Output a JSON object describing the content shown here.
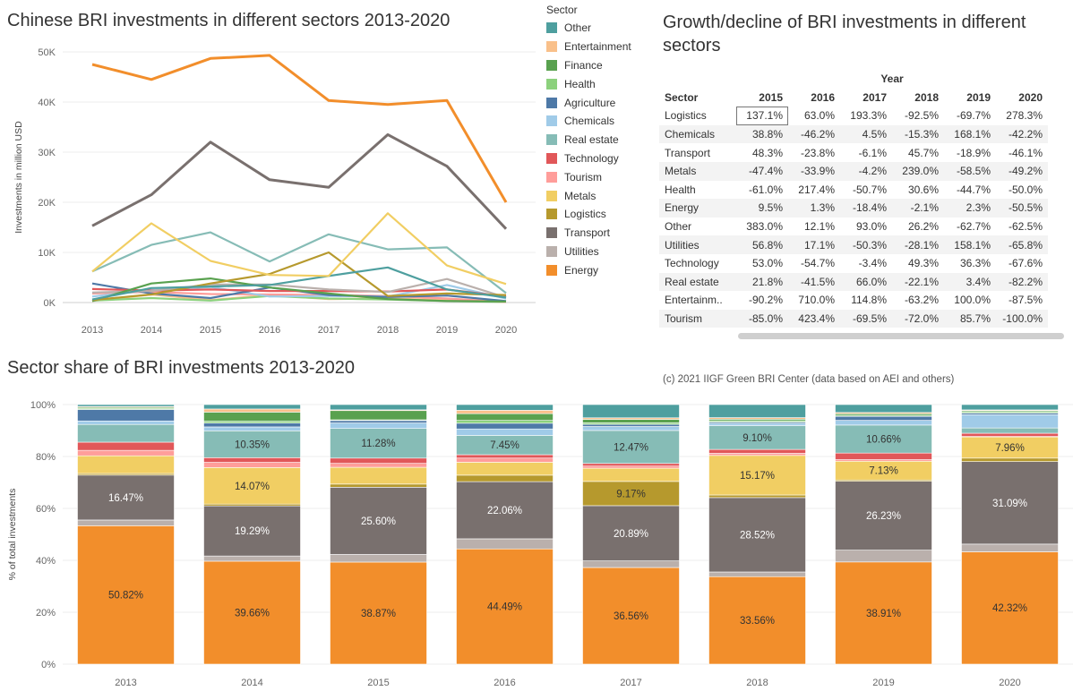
{
  "titles": {
    "line": "Chinese BRI investments in different sectors 2013-2020",
    "table": "Growth/decline of BRI investments in different sectors",
    "bars": "Sector share of BRI investments 2013-2020",
    "credit": "(c) 2021 IIGF Green BRI Center (data based on AEI and others)"
  },
  "legend": {
    "title": "Sector",
    "items": [
      {
        "label": "Other",
        "color": "#4e9f9f"
      },
      {
        "label": "Entertainment",
        "color": "#f9c08a"
      },
      {
        "label": "Finance",
        "color": "#59a14f"
      },
      {
        "label": "Health",
        "color": "#8cd17d"
      },
      {
        "label": "Agriculture",
        "color": "#4e79a7"
      },
      {
        "label": "Chemicals",
        "color": "#a0cbe8"
      },
      {
        "label": "Real estate",
        "color": "#86bcb6"
      },
      {
        "label": "Technology",
        "color": "#e15759"
      },
      {
        "label": "Tourism",
        "color": "#ff9d9a"
      },
      {
        "label": "Metals",
        "color": "#f1ce63"
      },
      {
        "label": "Logistics",
        "color": "#b6992d"
      },
      {
        "label": "Transport",
        "color": "#79706e"
      },
      {
        "label": "Utilities",
        "color": "#bab0ac"
      },
      {
        "label": "Energy",
        "color": "#f28e2b"
      }
    ]
  },
  "table": {
    "year_header": "Year",
    "sector_header": "Sector",
    "years": [
      "2015",
      "2016",
      "2017",
      "2018",
      "2019",
      "2020"
    ],
    "rows": [
      {
        "sector": "Logistics",
        "values": [
          "137.1%",
          "63.0%",
          "193.3%",
          "-92.5%",
          "-69.7%",
          "278.3%"
        ]
      },
      {
        "sector": "Chemicals",
        "values": [
          "38.8%",
          "-46.2%",
          "4.5%",
          "-15.3%",
          "168.1%",
          "-42.2%"
        ]
      },
      {
        "sector": "Transport",
        "values": [
          "48.3%",
          "-23.8%",
          "-6.1%",
          "45.7%",
          "-18.9%",
          "-46.1%"
        ]
      },
      {
        "sector": "Metals",
        "values": [
          "-47.4%",
          "-33.9%",
          "-4.2%",
          "239.0%",
          "-58.5%",
          "-49.2%"
        ]
      },
      {
        "sector": "Health",
        "values": [
          "-61.0%",
          "217.4%",
          "-50.7%",
          "30.6%",
          "-44.7%",
          "-50.0%"
        ]
      },
      {
        "sector": "Energy",
        "values": [
          "9.5%",
          "1.3%",
          "-18.4%",
          "-2.1%",
          "2.3%",
          "-50.5%"
        ]
      },
      {
        "sector": "Other",
        "values": [
          "383.0%",
          "12.1%",
          "93.0%",
          "26.2%",
          "-62.7%",
          "-62.5%"
        ]
      },
      {
        "sector": "Utilities",
        "values": [
          "56.8%",
          "17.1%",
          "-50.3%",
          "-28.1%",
          "158.1%",
          "-65.8%"
        ]
      },
      {
        "sector": "Technology",
        "values": [
          "53.0%",
          "-54.7%",
          "-3.4%",
          "49.3%",
          "36.3%",
          "-67.6%"
        ]
      },
      {
        "sector": "Real estate",
        "values": [
          "21.8%",
          "-41.5%",
          "66.0%",
          "-22.1%",
          "3.4%",
          "-82.2%"
        ]
      },
      {
        "sector": "Entertainm..",
        "values": [
          "-90.2%",
          "710.0%",
          "114.8%",
          "-63.2%",
          "100.0%",
          "-87.5%"
        ]
      },
      {
        "sector": "Tourism",
        "values": [
          "-85.0%",
          "423.4%",
          "-69.5%",
          "-72.0%",
          "85.7%",
          "-100.0%"
        ]
      }
    ]
  },
  "chart_data": [
    {
      "type": "line",
      "title": "Chinese BRI investments in different sectors 2013-2020",
      "xlabel": "",
      "ylabel": "Investments in million USD",
      "x": [
        "2013",
        "2014",
        "2015",
        "2016",
        "2017",
        "2018",
        "2019",
        "2020"
      ],
      "ylim": [
        0,
        50000
      ],
      "yticks": [
        "0K",
        "10K",
        "20K",
        "30K",
        "40K",
        "50K"
      ],
      "grid": true,
      "series": [
        {
          "name": "Energy",
          "color": "#f28e2b",
          "values": [
            47500,
            44500,
            48700,
            49300,
            40300,
            39500,
            40300,
            20000
          ]
        },
        {
          "name": "Transport",
          "color": "#79706e",
          "values": [
            15300,
            21500,
            32000,
            24500,
            23000,
            33500,
            27200,
            14700
          ]
        },
        {
          "name": "Metals",
          "color": "#f1ce63",
          "values": [
            6200,
            15800,
            8300,
            5500,
            5300,
            17800,
            7400,
            3700
          ]
        },
        {
          "name": "Real estate",
          "color": "#86bcb6",
          "values": [
            6200,
            11500,
            14000,
            8200,
            13600,
            10600,
            11000,
            1900
          ]
        },
        {
          "name": "Other",
          "color": "#4e9f9f",
          "values": [
            600,
            2900,
            3200,
            3500,
            5300,
            7000,
            2600,
            1000
          ]
        },
        {
          "name": "Logistics",
          "color": "#b6992d",
          "values": [
            500,
            1600,
            3800,
            5700,
            10000,
            1300,
            1800,
            1500
          ]
        },
        {
          "name": "Finance",
          "color": "#59a14f",
          "values": [
            300,
            3800,
            4800,
            3000,
            1800,
            700,
            300,
            200
          ]
        },
        {
          "name": "Utilities",
          "color": "#bab0ac",
          "values": [
            2000,
            2300,
            3600,
            3600,
            2600,
            2100,
            4700,
            1000
          ]
        },
        {
          "name": "Technology",
          "color": "#e15759",
          "values": [
            2700,
            2400,
            2600,
            2300,
            2300,
            2200,
            2600,
            1200
          ]
        },
        {
          "name": "Agriculture",
          "color": "#4e79a7",
          "values": [
            3800,
            1800,
            900,
            3000,
            1500,
            1100,
            1400,
            300
          ]
        },
        {
          "name": "Chemicals",
          "color": "#a0cbe8",
          "values": [
            1200,
            2500,
            3100,
            1200,
            1300,
            1200,
            3500,
            800
          ]
        },
        {
          "name": "Tourism",
          "color": "#ff9d9a",
          "values": [
            1800,
            2100,
            1700,
            1600,
            1500,
            1300,
            800,
            100
          ]
        },
        {
          "name": "Health",
          "color": "#8cd17d",
          "values": [
            400,
            900,
            400,
            1300,
            800,
            600,
            300,
            100
          ]
        },
        {
          "name": "Entertainment",
          "color": "#f9c08a",
          "values": [
            300,
            1600,
            500,
            1500,
            700,
            800,
            500,
            100
          ]
        }
      ]
    },
    {
      "type": "bar",
      "stacked": true,
      "title": "Sector share of BRI investments 2013-2020",
      "xlabel": "",
      "ylabel": "% of total investments",
      "categories": [
        "2013",
        "2014",
        "2015",
        "2016",
        "2017",
        "2018",
        "2019",
        "2020"
      ],
      "ylim": [
        0,
        100
      ],
      "yticks": [
        "0%",
        "20%",
        "40%",
        "60%",
        "80%",
        "100%"
      ],
      "stack_order": "bottom to top",
      "series": [
        {
          "name": "Energy",
          "color": "#f28e2b",
          "values": [
            50.82,
            39.66,
            38.87,
            44.49,
            36.56,
            33.56,
            38.91,
            42.32
          ],
          "labels": [
            "50.82%",
            "39.66%",
            "38.87%",
            "44.49%",
            "36.56%",
            "33.56%",
            "38.91%",
            "42.32%"
          ]
        },
        {
          "name": "Utilities",
          "color": "#bab0ac",
          "values": [
            2.1,
            2.0,
            2.9,
            3.9,
            2.5,
            1.8,
            4.5,
            2.9
          ]
        },
        {
          "name": "Transport",
          "color": "#79706e",
          "values": [
            16.47,
            19.29,
            25.6,
            22.06,
            20.89,
            28.52,
            26.23,
            31.09
          ],
          "labels": [
            "16.47%",
            "19.29%",
            "25.60%",
            "22.06%",
            "20.89%",
            "28.52%",
            "26.23%",
            "31.09%"
          ]
        },
        {
          "name": "Logistics",
          "color": "#b6992d",
          "values": [
            0.6,
            0.7,
            1.2,
            2.5,
            9.17,
            1.0,
            0.5,
            1.3
          ],
          "labels": [
            "",
            "",
            "",
            "",
            "9.17%",
            "",
            "",
            ""
          ]
        },
        {
          "name": "Metals",
          "color": "#f1ce63",
          "values": [
            6.5,
            14.07,
            6.4,
            5.0,
            5.0,
            15.17,
            7.13,
            7.96
          ],
          "labels": [
            "",
            "14.07%",
            "",
            "",
            "",
            "15.17%",
            "7.13%",
            "7.96%"
          ]
        },
        {
          "name": "Tourism",
          "color": "#ff9d9a",
          "values": [
            2.0,
            2.0,
            1.5,
            1.6,
            0.8,
            0.8,
            0.6,
            0.2
          ]
        },
        {
          "name": "Technology",
          "color": "#e15759",
          "values": [
            3.0,
            1.8,
            2.0,
            1.3,
            1.0,
            1.5,
            2.5,
            1.2
          ]
        },
        {
          "name": "Real estate",
          "color": "#86bcb6",
          "values": [
            6.5,
            10.35,
            11.28,
            7.45,
            12.47,
            9.1,
            10.66,
            2.0
          ],
          "labels": [
            "",
            "10.35%",
            "11.28%",
            "7.45%",
            "12.47%",
            "9.10%",
            "10.66%",
            ""
          ]
        },
        {
          "name": "Chemicals",
          "color": "#a0cbe8",
          "values": [
            1.3,
            1.5,
            2.1,
            2.5,
            1.5,
            0.9,
            1.8,
            5.0
          ]
        },
        {
          "name": "Agriculture",
          "color": "#4e79a7",
          "values": [
            4.2,
            1.5,
            0.9,
            2.2,
            0.8,
            0.5,
            1.5,
            0.6
          ]
        },
        {
          "name": "Health",
          "color": "#8cd17d",
          "values": [
            0.4,
            0.7,
            0.3,
            1.1,
            0.6,
            0.5,
            0.4,
            0.5
          ]
        },
        {
          "name": "Finance",
          "color": "#59a14f",
          "values": [
            0.4,
            3.5,
            3.5,
            2.6,
            1.3,
            0.6,
            0.6,
            0.4
          ]
        },
        {
          "name": "Entertainment",
          "color": "#f9c08a",
          "values": [
            0.3,
            1.2,
            0.3,
            1.3,
            0.6,
            0.6,
            0.5,
            0.3
          ]
        },
        {
          "name": "Other",
          "color": "#4e9f9f",
          "values": [
            0.7,
            1.7,
            2.0,
            2.2,
            5.0,
            5.0,
            3.0,
            2.0
          ]
        }
      ]
    }
  ]
}
